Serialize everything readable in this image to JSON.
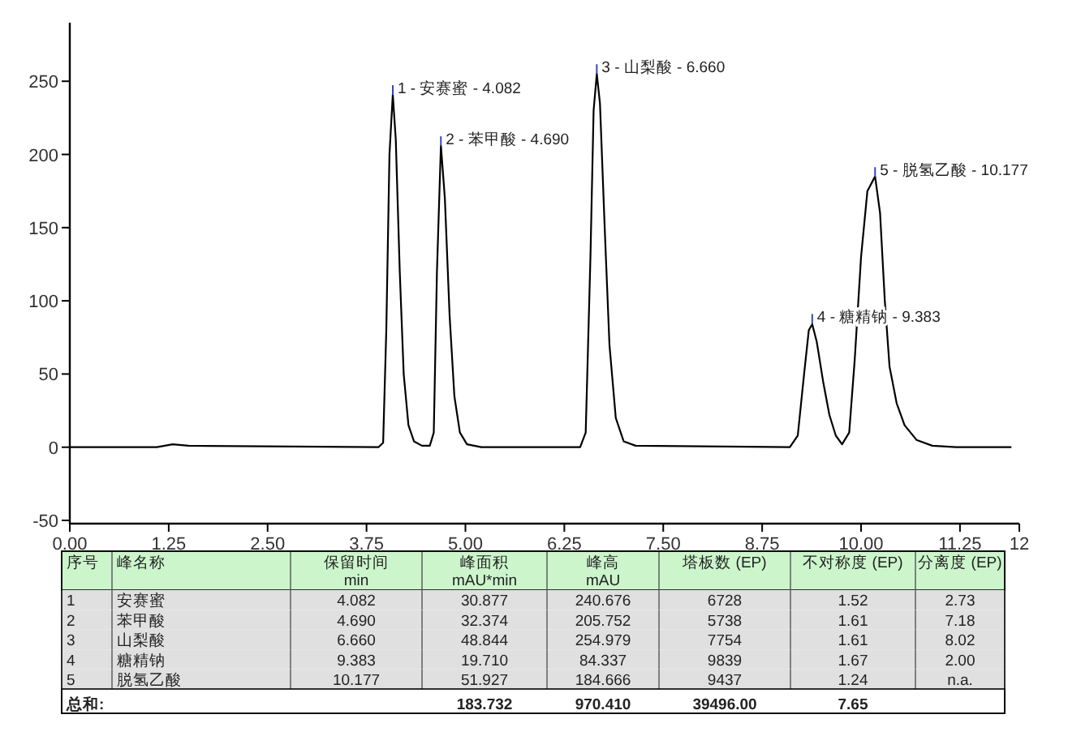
{
  "chart_data": {
    "type": "line",
    "series": [
      {
        "color": "#000000",
        "x": [
          0,
          1.1,
          1.3,
          1.5,
          3.9,
          3.96,
          4.0,
          4.04,
          4.082,
          4.12,
          4.17,
          4.22,
          4.28,
          4.35,
          4.45,
          4.55,
          4.6,
          4.64,
          4.69,
          4.74,
          4.8,
          4.86,
          4.93,
          5.02,
          5.2,
          6.45,
          6.52,
          6.58,
          6.62,
          6.66,
          6.7,
          6.76,
          6.82,
          6.9,
          7.0,
          7.15,
          9.1,
          9.2,
          9.28,
          9.34,
          9.383,
          9.44,
          9.52,
          9.6,
          9.68,
          9.76,
          9.85,
          9.92,
          10.0,
          10.08,
          10.177,
          10.24,
          10.3,
          10.36,
          10.45,
          10.55,
          10.7,
          10.9,
          11.2,
          11.9
        ],
        "values": [
          0,
          0,
          2,
          1,
          0,
          3,
          80,
          200,
          241,
          210,
          120,
          50,
          15,
          4,
          1,
          1,
          10,
          120,
          206,
          170,
          90,
          35,
          10,
          2,
          0,
          0,
          10,
          130,
          230,
          255,
          235,
          150,
          70,
          20,
          4,
          1,
          0,
          8,
          50,
          80,
          84,
          72,
          45,
          22,
          8,
          2,
          10,
          60,
          130,
          175,
          185,
          160,
          100,
          55,
          30,
          15,
          5,
          1,
          0,
          0
        ]
      }
    ],
    "xlim": [
      0,
      12
    ],
    "ylim": [
      -50,
      290
    ],
    "xticks": [
      {
        "value": 0,
        "label": "0.00"
      },
      {
        "value": 1.25,
        "label": "1.25"
      },
      {
        "value": 2.5,
        "label": "2.50"
      },
      {
        "value": 3.75,
        "label": "3.75"
      },
      {
        "value": 5,
        "label": "5.00"
      },
      {
        "value": 6.25,
        "label": "6.25"
      },
      {
        "value": 7.5,
        "label": "7.50"
      },
      {
        "value": 8.75,
        "label": "8.75"
      },
      {
        "value": 10,
        "label": "10.00"
      },
      {
        "value": 11.25,
        "label": "11.25"
      },
      12
    ],
    "yticks": [
      -50,
      0,
      50,
      100,
      150,
      200,
      250
    ],
    "grid": false,
    "annotations": [
      {
        "text": "1 - 安赛蜜 - 4.082",
        "x": 4.082,
        "y": 240.676
      },
      {
        "text": "2 - 苯甲酸 - 4.690",
        "x": 4.69,
        "y": 205.752
      },
      {
        "text": "3 - 山梨酸 - 6.660",
        "x": 6.66,
        "y": 254.979
      },
      {
        "text": "4 - 糖精钠 - 9.383",
        "x": 9.383,
        "y": 84.337
      },
      {
        "text": "5 - 脱氢乙酸 - 10.177",
        "x": 10.177,
        "y": 184.666
      },
      "序号",
      "峰名称",
      "保留时间\nmin",
      "峰面积\nmAU*min",
      "峰高\nmAU",
      "塔板数 (EP)",
      "不对称度 (EP)",
      "分离度 (EP)",
      "1",
      "安赛蜜",
      "4.082",
      "30.877",
      "240.676",
      "6728",
      "1.52",
      "2.73",
      "2",
      "苯甲酸",
      "4.690",
      "32.374",
      "205.752",
      "5738",
      "1.61",
      "7.18",
      "3",
      "山梨酸",
      "6.660",
      "48.844",
      "254.979",
      "7754",
      "1.61",
      "8.02",
      "4",
      "糖精钠",
      "9.383",
      "19.710",
      "84.337",
      "9839",
      "1.67",
      "2.00",
      "5",
      "脱氢乙酸",
      "10.177",
      "51.927",
      "184.666",
      "9437",
      "1.24",
      "n.a.",
      "总和:",
      null,
      null,
      "183.732",
      "970.410",
      "39496.00",
      "7.65",
      null
    ]
  }
}
